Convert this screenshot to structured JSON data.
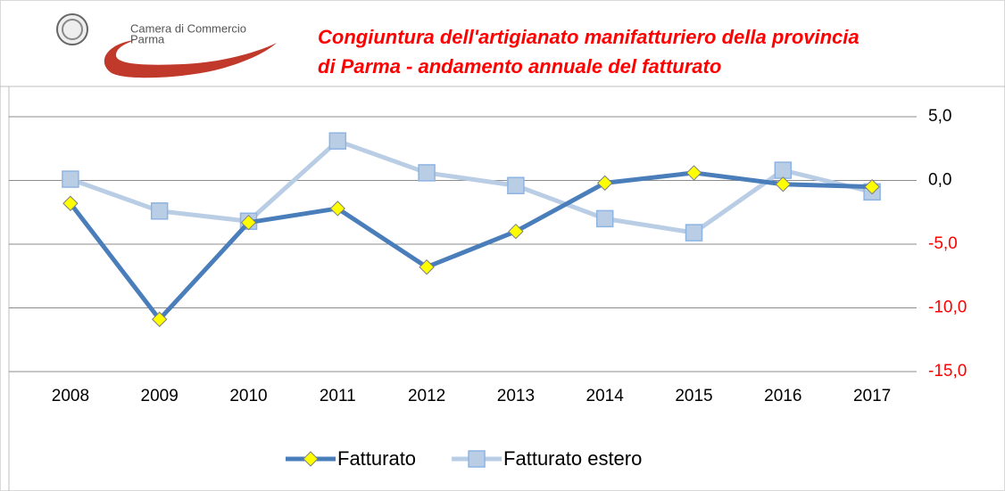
{
  "logo": {
    "lines": [
      "Camera di Commercio",
      "Parma"
    ]
  },
  "chart_data": {
    "type": "line",
    "title": [
      "Congiuntura dell'artigianato manifatturiero della provincia",
      "di Parma - andamento annuale del fatturato"
    ],
    "categories": [
      "2008",
      "2009",
      "2010",
      "2011",
      "2012",
      "2013",
      "2014",
      "2015",
      "2016",
      "2017"
    ],
    "series": [
      {
        "name": "Fatturato",
        "color": "#4a7ebb",
        "marker": "diamond",
        "marker_color": "#ffff00",
        "values": [
          -1.8,
          -10.9,
          -3.3,
          -2.2,
          -6.8,
          -4.0,
          -0.2,
          0.6,
          -0.3,
          -0.5
        ]
      },
      {
        "name": "Fatturato estero",
        "color": "#b9cde5",
        "marker": "square",
        "marker_color": "#b9cde5",
        "values": [
          0.1,
          -2.4,
          -3.2,
          3.1,
          0.6,
          -0.4,
          -3.0,
          -4.1,
          0.8,
          -0.9
        ]
      }
    ],
    "ylim": [
      -15,
      5
    ],
    "yticks": [
      {
        "value": 5,
        "label": "5,0"
      },
      {
        "value": 0,
        "label": "0,0"
      },
      {
        "value": -5,
        "label": "-5,0"
      },
      {
        "value": -10,
        "label": "-10,0"
      },
      {
        "value": -15,
        "label": "-15,0"
      }
    ],
    "y_axis_side": "right",
    "negative_tick_color": "#ff0000",
    "grid": true,
    "legend": "bottom"
  }
}
